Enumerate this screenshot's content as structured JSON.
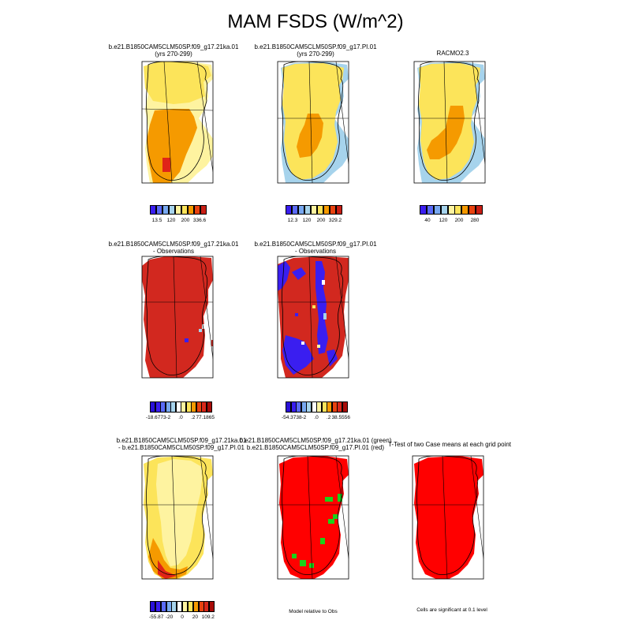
{
  "title": "MAM FSDS (W/m^2)",
  "colors": {
    "yellow_light": "#fef3a0",
    "yellow": "#fce45a",
    "orange": "#f59a00",
    "red": "#e02418",
    "dark_red": "#d2281f",
    "blue": "#3a1ef0",
    "light_blue": "#a6d3ec",
    "green": "#1ad21a",
    "coast": "#000000"
  },
  "panels": {
    "p1": {
      "title_line1": "b.e21.B1850CAM5CLM50SP.f09_g17.21ka.01",
      "title_line2": "(yrs 270-299)"
    },
    "p2": {
      "title_line1": "b.e21.B1850CAM5CLM50SP.f09_g17.PI.01",
      "title_line2": "(yrs 270-299)"
    },
    "p3": {
      "title_line1": "RACMO2.3"
    },
    "p4": {
      "title_line1": "b.e21.B1850CAM5CLM50SP.f09_g17.21ka.01",
      "title_line2": "- Observations"
    },
    "p5": {
      "title_line1": "b.e21.B1850CAM5CLM50SP.f09_g17.PI.01",
      "title_line2": "- Observations"
    },
    "p6": {
      "title_line1": "b.e21.B1850CAM5CLM50SP.f09_g17.21ka.01",
      "title_line2": "- b.e21.B1850CAM5CLM50SP.f09_g17.PI.01"
    },
    "p7": {
      "title_line1": "b.e21.B1850CAM5CLM50SP.f09_g17.21ka.01 (green)",
      "title_line2": "b.e21.B1850CAM5CLM50SP.f09_g17.PI.01 (red)",
      "footnote": "Model relative to Obs"
    },
    "p8": {
      "title_line1": "T-Test of two Case means at each grid point",
      "footnote": "Cells are significant at 0.1 level"
    }
  },
  "colorbars": {
    "cb1": {
      "ticks": [
        "13.5",
        "120",
        "200",
        "336.6"
      ],
      "colors": [
        "#3a1ef0",
        "#5a6af6",
        "#78a8f0",
        "#a6d3ec",
        "#fef3a0",
        "#fce45a",
        "#f59a00",
        "#e8420f",
        "#c81e14"
      ]
    },
    "cb2": {
      "ticks": [
        "12.3",
        "120",
        "200",
        "329.2"
      ],
      "colors": [
        "#3a1ef0",
        "#5a6af6",
        "#78a8f0",
        "#a6d3ec",
        "#fef3a0",
        "#fce45a",
        "#f59a00",
        "#e8420f",
        "#c81e14"
      ]
    },
    "cb3": {
      "ticks": [
        "40",
        "120",
        "200",
        "280"
      ],
      "colors": [
        "#3a1ef0",
        "#5a6af6",
        "#78a8f0",
        "#a6d3ec",
        "#fef3a0",
        "#fce45a",
        "#f59a00",
        "#e8420f",
        "#c81e14"
      ]
    },
    "cb4": {
      "ticks": [
        "-18.6773",
        "-2",
        ".0",
        ".2",
        "77.1865"
      ],
      "colors": [
        "#2a10d8",
        "#3a1ef0",
        "#5a6af6",
        "#78a8f0",
        "#a6d3ec",
        "#ffffff",
        "#fef3a0",
        "#fce45a",
        "#f59a00",
        "#e8420f",
        "#d8281a",
        "#a80c08"
      ]
    },
    "cb5": {
      "ticks": [
        "-54.3738",
        "-2",
        ".0",
        ".2",
        "38.5556"
      ],
      "colors": [
        "#2a10d8",
        "#3a1ef0",
        "#5a6af6",
        "#78a8f0",
        "#a6d3ec",
        "#ffffff",
        "#fef3a0",
        "#fce45a",
        "#f59a00",
        "#e8420f",
        "#d8281a",
        "#a80c08"
      ]
    },
    "cb6": {
      "ticks": [
        "-55.87",
        "-20",
        "0",
        "20",
        "109.2"
      ],
      "colors": [
        "#2a10d8",
        "#3a1ef0",
        "#5a6af6",
        "#78a8f0",
        "#a6d3ec",
        "#ffffff",
        "#fef3a0",
        "#fce45a",
        "#f59a00",
        "#e8420f",
        "#d8281a",
        "#a80c08"
      ]
    }
  }
}
